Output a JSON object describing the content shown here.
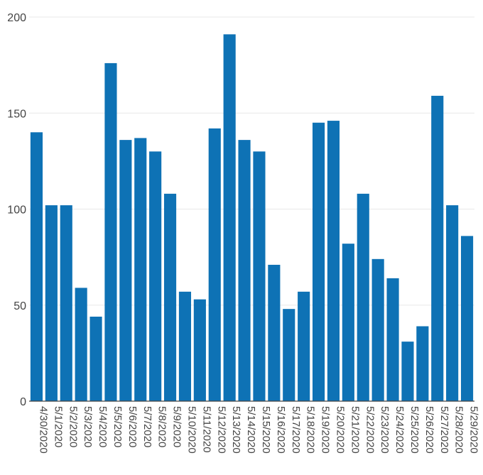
{
  "chart_data": {
    "type": "bar",
    "title": "",
    "xlabel": "",
    "ylabel": "",
    "ylim": [
      0,
      200
    ],
    "yticks": [
      0,
      50,
      100,
      150,
      200
    ],
    "grid": true,
    "bar_color": "#0e72b5",
    "categories": [
      "4/30/2020",
      "5/1/2020",
      "5/2/2020",
      "5/3/2020",
      "5/4/2020",
      "5/5/2020",
      "5/6/2020",
      "5/7/2020",
      "5/8/2020",
      "5/9/2020",
      "5/10/2020",
      "5/11/2020",
      "5/12/2020",
      "5/13/2020",
      "5/14/2020",
      "5/15/2020",
      "5/16/2020",
      "5/17/2020",
      "5/18/2020",
      "5/19/2020",
      "5/20/2020",
      "5/21/2020",
      "5/22/2020",
      "5/23/2020",
      "5/24/2020",
      "5/25/2020",
      "5/26/2020",
      "5/27/2020",
      "5/28/2020",
      "5/29/2020"
    ],
    "values": [
      140,
      102,
      102,
      59,
      44,
      176,
      136,
      137,
      130,
      108,
      57,
      53,
      142,
      191,
      136,
      130,
      71,
      48,
      57,
      145,
      146,
      82,
      108,
      74,
      64,
      31,
      39,
      159,
      102,
      86
    ]
  }
}
